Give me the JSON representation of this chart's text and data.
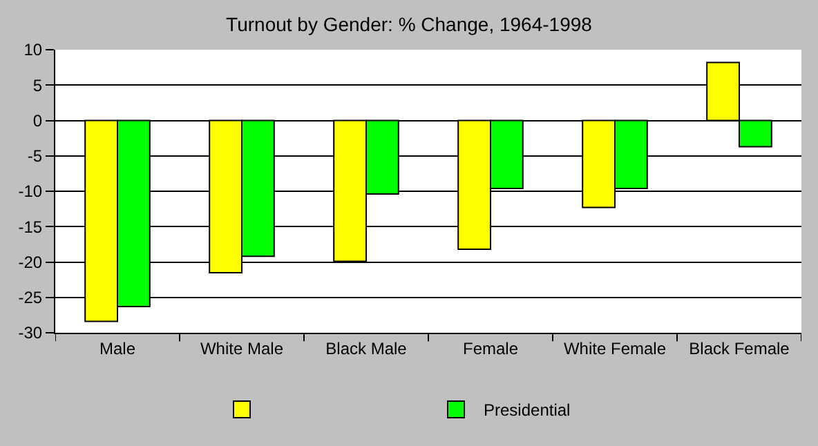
{
  "chart_data": {
    "type": "bar",
    "title": "Turnout by Gender: % Change, 1964-1998",
    "categories": [
      "Male",
      "White Male",
      "Black Male",
      "Female",
      "White Female",
      "Black Female"
    ],
    "series": [
      {
        "color": "#ffff00",
        "values": [
          -28.4,
          -21.5,
          -19.9,
          -18.2,
          -12.3,
          8.2
        ]
      },
      {
        "name": "Presidential",
        "color": "#00ff00",
        "values": [
          -26.3,
          -19.2,
          -10.4,
          -9.6,
          -9.6,
          -3.7
        ]
      }
    ],
    "ylim": [
      -30,
      10
    ],
    "yticks": [
      -30,
      -25,
      -20,
      -15,
      -10,
      -5,
      0,
      5,
      10
    ],
    "grid": "y",
    "legend": "bottom"
  }
}
